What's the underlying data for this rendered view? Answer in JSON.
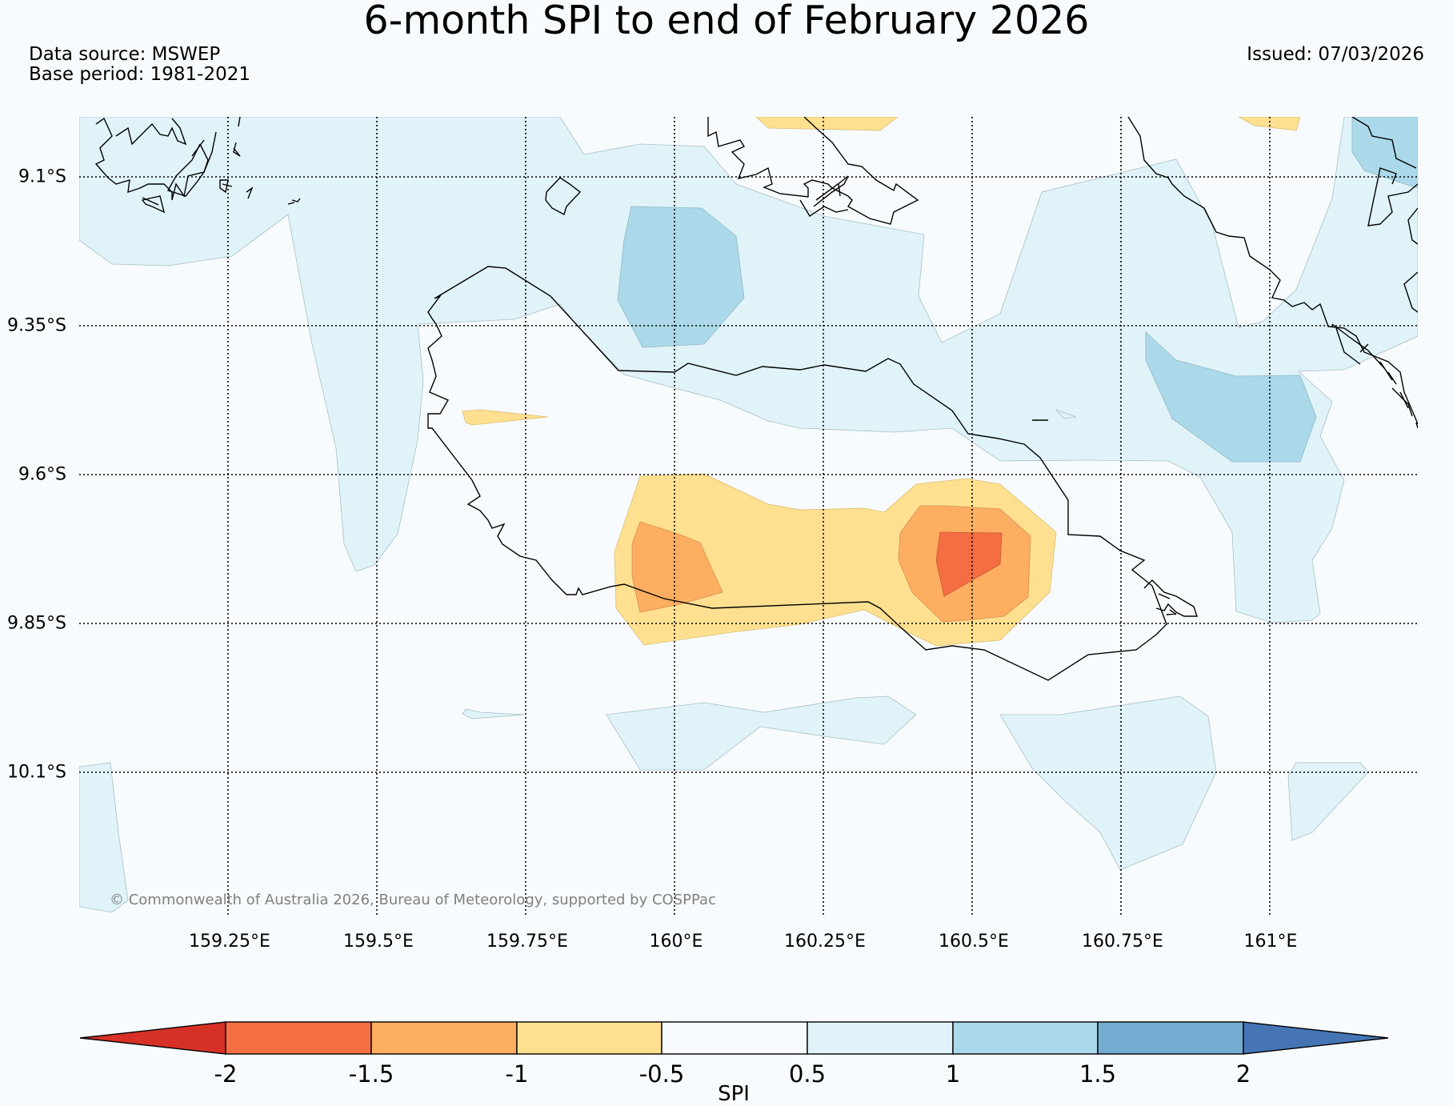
{
  "title": "6-month SPI to end of February 2026",
  "data_source": "Data source: MSWEP",
  "base_period": "Base period: 1981-2021",
  "issued": "Issued: 07/03/2026",
  "copyright": "© Commonwealth of Australia 2026, Bureau of Meteorology, supported by COSPPac",
  "lat_labels": [
    "9.1°S",
    "9.35°S",
    "9.6°S",
    "9.85°S",
    "10.1°S"
  ],
  "lon_labels": [
    "159.25°E",
    "159.5°E",
    "159.75°E",
    "160°E",
    "160.25°E",
    "160.5°E",
    "160.75°E",
    "161°E"
  ],
  "colorbar": {
    "label": "SPI",
    "ticks": [
      "-2",
      "-1.5",
      "-1",
      "-0.5",
      "0.5",
      "1",
      "1.5",
      "2"
    ],
    "colors": {
      "lt_m2": "#d73027",
      "m2_m1_5": "#f46d43",
      "m1_5_m1": "#fdae61",
      "m1_m0_5": "#fee090",
      "m0_5_0_5": "#f7fbfd",
      "p0_5_p1": "#e0f3f8",
      "p1_p1_5": "#abd9e9",
      "p1_5_p2": "#74add1",
      "gt_p2": "#4575b4"
    }
  }
}
